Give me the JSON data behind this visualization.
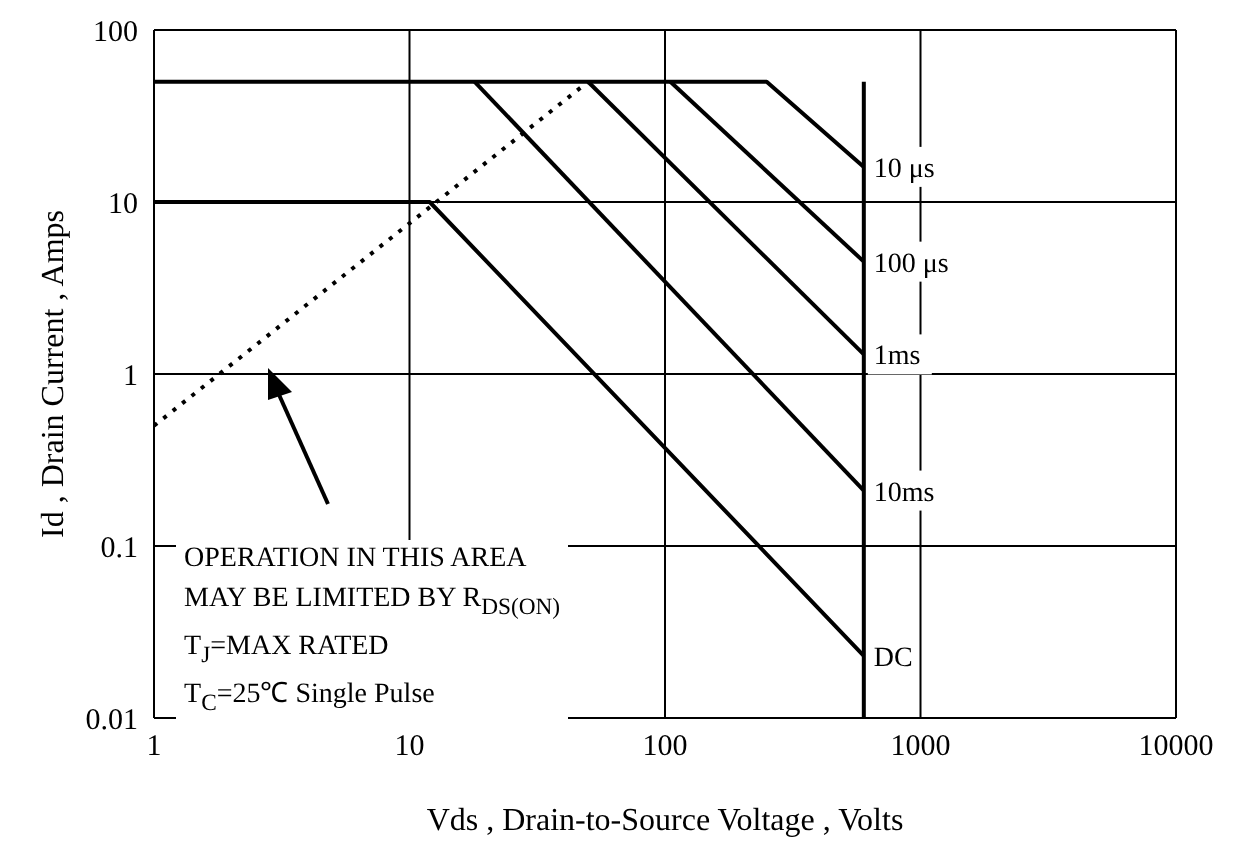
{
  "chart_data": {
    "type": "line",
    "xlabel": "Vds , Drain-to-Source Voltage , Volts",
    "ylabel": "Id , Drain Current , Amps",
    "log": "xy",
    "grid": true,
    "marker": "none",
    "xlim": [
      1,
      10000
    ],
    "ylim": [
      0.01,
      100
    ],
    "xticks": [
      1,
      10,
      100,
      1000,
      10000
    ],
    "yticks": [
      0.01,
      0.1,
      1,
      10,
      100
    ],
    "series": [
      {
        "name": "10 μs",
        "color": "#000000",
        "x": [
          1,
          250,
          600
        ],
        "values": [
          50,
          50,
          16
        ]
      },
      {
        "name": "100 μs",
        "color": "#000000",
        "x": [
          105,
          600
        ],
        "values": [
          50,
          4.5
        ]
      },
      {
        "name": "1ms",
        "color": "#000000",
        "x": [
          50,
          600
        ],
        "values": [
          50,
          1.3
        ]
      },
      {
        "name": "10ms",
        "color": "#000000",
        "x": [
          18,
          600
        ],
        "values": [
          50,
          0.21
        ]
      },
      {
        "name": "DC",
        "color": "#000000",
        "x": [
          1,
          12,
          600
        ],
        "values": [
          10,
          10,
          0.023
        ]
      },
      {
        "color": "#000000",
        "x": [
          600,
          600
        ],
        "values": [
          50,
          0.01
        ]
      },
      {
        "color": "#000000",
        "line_style": "dotted",
        "x": [
          1,
          50
        ],
        "values": [
          0.5,
          50
        ]
      }
    ],
    "annotations": [
      "OPERATION IN THIS AREA",
      "MAY BE LIMITED BY R$_{DS(ON)}$",
      "T$_{J}$=MAX RATED",
      "T$_{C}$=25℃  Single Pulse"
    ]
  }
}
